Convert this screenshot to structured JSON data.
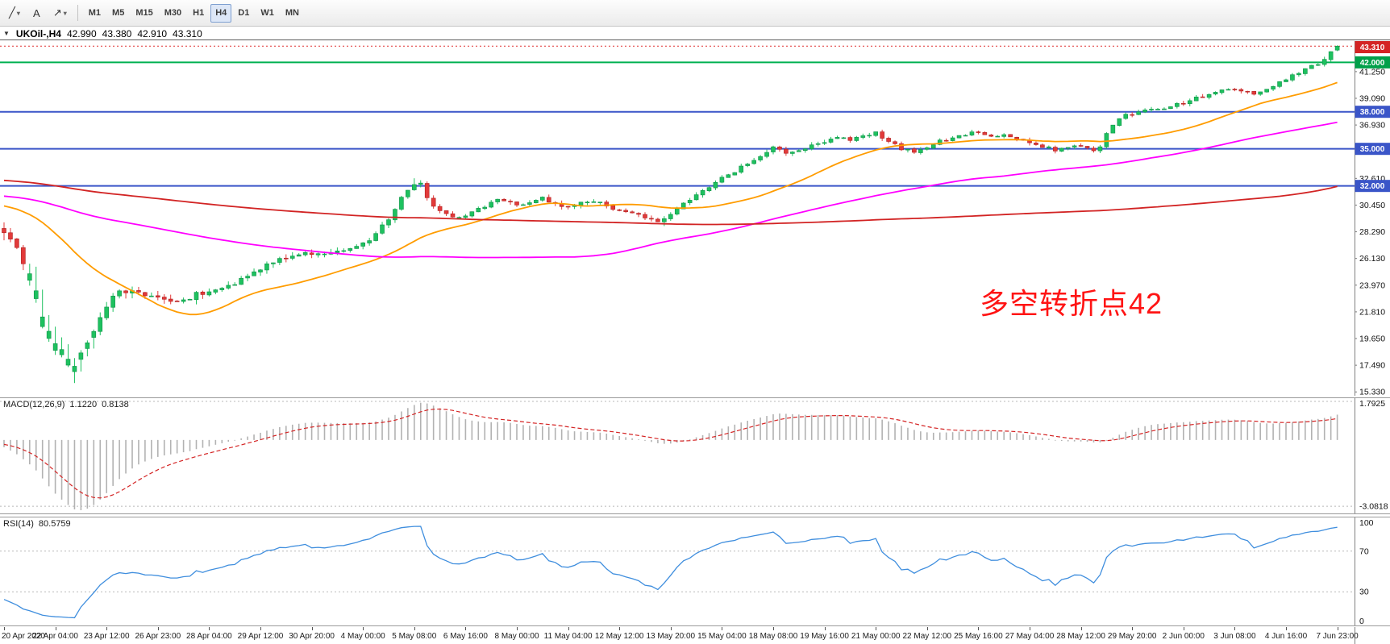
{
  "toolbar": {
    "tools": [
      {
        "name": "draw-line-tool-button",
        "glyph": "╱",
        "caret": true
      },
      {
        "name": "text-tool-button",
        "glyph": "A",
        "caret": false
      },
      {
        "name": "arrow-tool-button",
        "glyph": "↗",
        "caret": true
      }
    ],
    "timeframes": [
      "M1",
      "M5",
      "M15",
      "M30",
      "H1",
      "H4",
      "D1",
      "W1",
      "MN"
    ],
    "active_timeframe": "H4"
  },
  "quote": {
    "expander_glyph": "▼",
    "symbol": "UKOil-,H4",
    "open": "42.990",
    "high": "43.380",
    "low": "42.910",
    "close": "43.310"
  },
  "annotation": {
    "text": "多空转折点42",
    "color": "#ff1414"
  },
  "price_axis": {
    "ticks": [
      "41.250",
      "39.090",
      "36.930",
      "34.770",
      "32.610",
      "30.450",
      "28.290",
      "26.130",
      "23.970",
      "21.810",
      "19.650",
      "17.490",
      "15.330"
    ],
    "badges": [
      {
        "label": "43.310",
        "value": 43.31,
        "type": "current-price",
        "color": "#d42424"
      },
      {
        "label": "42.000",
        "value": 42.0,
        "type": "level",
        "color": "#00a04a"
      },
      {
        "label": "38.000",
        "value": 38.0,
        "type": "level",
        "color": "#3a55c8"
      },
      {
        "label": "35.000",
        "value": 35.0,
        "type": "level",
        "color": "#3a55c8"
      },
      {
        "label": "32.000",
        "value": 32.0,
        "type": "level",
        "color": "#3a55c8"
      }
    ]
  },
  "hlines": [
    {
      "value": 42.0,
      "color": "#00b050",
      "width": 2
    },
    {
      "value": 38.0,
      "color": "#3a55c8",
      "width": 2
    },
    {
      "value": 35.0,
      "color": "#3a55c8",
      "width": 2
    },
    {
      "value": 32.0,
      "color": "#3a55c8",
      "width": 2
    }
  ],
  "indicators": {
    "macd": {
      "label": "MACD(12,26,9)",
      "main_value": "1.1220",
      "signal_value": "0.8138",
      "fast": 12,
      "slow": 26,
      "signal": 9,
      "axis_labels": {
        "upper": "1.7925",
        "lower": "-3.0818"
      }
    },
    "rsi": {
      "label": "RSI(14)",
      "value": "80.5759",
      "period": 14,
      "levels": [
        "100",
        "70",
        "30",
        "0"
      ]
    }
  },
  "chart_data": {
    "type": "candlestick",
    "symbol": "UKOil-",
    "period": "H4",
    "title": "UKOil-,H4 42.990 43.380 42.910 43.310",
    "ylim": [
      15.02,
      43.72
    ],
    "num_candles": 209,
    "bars_per_label": 8,
    "x_labels": [
      "20 Apr 2020",
      "22 Apr 04:00",
      "23 Apr 12:00",
      "26 Apr 23:00",
      "28 Apr 04:00",
      "29 Apr 12:00",
      "30 Apr 20:00",
      "4 May 00:00",
      "5 May 08:00",
      "6 May 16:00",
      "8 May 00:00",
      "11 May 04:00",
      "12 May 12:00",
      "13 May 20:00",
      "15 May 04:00",
      "18 May 08:00",
      "19 May 16:00",
      "21 May 00:00",
      "22 May 12:00",
      "25 May 16:00",
      "27 May 04:00",
      "28 May 12:00",
      "29 May 20:00",
      "2 Jun 00:00",
      "3 Jun 08:00",
      "4 Jun 16:00",
      "7 Jun 23:00"
    ],
    "last_candle": {
      "open": 42.99,
      "high": 43.38,
      "low": 42.91,
      "close": 43.31
    },
    "close_path_anchors": [
      [
        0,
        28.3
      ],
      [
        2,
        27.2
      ],
      [
        4,
        24.8
      ],
      [
        6,
        21.6
      ],
      [
        8,
        19.2
      ],
      [
        10,
        18.1
      ],
      [
        11,
        17.6
      ],
      [
        13,
        19.4
      ],
      [
        16,
        22.2
      ],
      [
        18,
        23.6
      ],
      [
        21,
        23.3
      ],
      [
        24,
        23.0
      ],
      [
        27,
        22.5
      ],
      [
        30,
        23.2
      ],
      [
        33,
        23.7
      ],
      [
        36,
        24.2
      ],
      [
        39,
        25.0
      ],
      [
        42,
        25.8
      ],
      [
        45,
        26.4
      ],
      [
        48,
        26.6
      ],
      [
        51,
        26.5
      ],
      [
        54,
        26.9
      ],
      [
        57,
        27.6
      ],
      [
        60,
        29.3
      ],
      [
        62,
        31.0
      ],
      [
        64,
        32.2
      ],
      [
        65,
        32.3
      ],
      [
        66,
        31.0
      ],
      [
        68,
        29.9
      ],
      [
        70,
        29.4
      ],
      [
        72,
        29.6
      ],
      [
        74,
        30.1
      ],
      [
        76,
        30.7
      ],
      [
        78,
        30.9
      ],
      [
        80,
        30.4
      ],
      [
        82,
        30.7
      ],
      [
        84,
        31.0
      ],
      [
        86,
        30.6
      ],
      [
        88,
        30.3
      ],
      [
        90,
        30.6
      ],
      [
        92,
        30.8
      ],
      [
        94,
        30.4
      ],
      [
        96,
        30.0
      ],
      [
        98,
        29.7
      ],
      [
        100,
        29.5
      ],
      [
        102,
        29.1
      ],
      [
        104,
        29.8
      ],
      [
        106,
        30.5
      ],
      [
        108,
        31.2
      ],
      [
        110,
        31.9
      ],
      [
        112,
        32.6
      ],
      [
        114,
        33.2
      ],
      [
        116,
        33.8
      ],
      [
        118,
        34.5
      ],
      [
        120,
        35.1
      ],
      [
        122,
        34.7
      ],
      [
        124,
        34.9
      ],
      [
        126,
        35.3
      ],
      [
        128,
        35.6
      ],
      [
        130,
        36.0
      ],
      [
        132,
        35.7
      ],
      [
        134,
        36.1
      ],
      [
        136,
        36.3
      ],
      [
        138,
        35.6
      ],
      [
        140,
        35.0
      ],
      [
        142,
        34.7
      ],
      [
        144,
        35.2
      ],
      [
        146,
        35.6
      ],
      [
        148,
        35.9
      ],
      [
        150,
        36.2
      ],
      [
        152,
        36.4
      ],
      [
        154,
        36.0
      ],
      [
        156,
        36.2
      ],
      [
        158,
        35.8
      ],
      [
        160,
        35.5
      ],
      [
        162,
        35.2
      ],
      [
        164,
        34.9
      ],
      [
        166,
        35.1
      ],
      [
        168,
        35.3
      ],
      [
        170,
        34.9
      ],
      [
        171,
        35.1
      ],
      [
        172,
        36.2
      ],
      [
        173,
        36.9
      ],
      [
        174,
        37.4
      ],
      [
        175,
        37.7
      ],
      [
        177,
        38.0
      ],
      [
        179,
        38.3
      ],
      [
        181,
        38.2
      ],
      [
        183,
        38.6
      ],
      [
        185,
        38.9
      ],
      [
        187,
        39.3
      ],
      [
        189,
        39.6
      ],
      [
        191,
        39.9
      ],
      [
        193,
        39.7
      ],
      [
        195,
        39.4
      ],
      [
        197,
        39.9
      ],
      [
        199,
        40.4
      ],
      [
        201,
        40.9
      ],
      [
        203,
        41.4
      ],
      [
        205,
        41.9
      ],
      [
        206,
        42.3
      ],
      [
        207,
        42.8
      ],
      [
        208,
        43.31
      ]
    ],
    "spikes": [
      {
        "idx": 11,
        "low": 16.05
      },
      {
        "idx": 64,
        "high": 32.62
      },
      {
        "idx": 103,
        "low": 28.75
      }
    ],
    "overlays": [
      {
        "name": "ma-fast",
        "period": 25,
        "color": "#ff9c00"
      },
      {
        "name": "ma-mid",
        "period": 90,
        "color": "#ff00ff"
      },
      {
        "name": "ma-slow",
        "period": 200,
        "color": "#d22424"
      }
    ]
  },
  "colors": {
    "up": "#1ec15f",
    "up_border": "#0f9448",
    "down": "#e23a3a",
    "down_border": "#b01f1f",
    "ma_fast": "#ff9c00",
    "ma_mid": "#ff00ff",
    "ma_slow": "#d22424",
    "macd_hist": "#b2b2b2",
    "macd_signal": "#d42424",
    "rsi_line": "#3f8ede",
    "grid_dash": "#b8b8b8",
    "axis_text": "#111111",
    "bid_line": "#e03030"
  }
}
